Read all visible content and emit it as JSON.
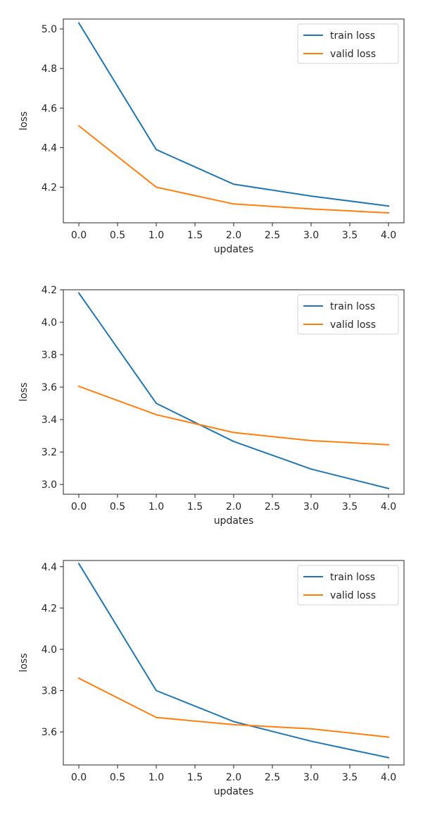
{
  "chart_data": [
    {
      "type": "line",
      "xlabel": "updates",
      "ylabel": "loss",
      "x": [
        0,
        1,
        2,
        3,
        4
      ],
      "xlim": [
        -0.2,
        4.2
      ],
      "ylim": [
        4.02,
        5.05
      ],
      "xticks": [
        0.0,
        0.5,
        1.0,
        1.5,
        2.0,
        2.5,
        3.0,
        3.5,
        4.0
      ],
      "xtick_labels": [
        "0.0",
        "0.5",
        "1.0",
        "1.5",
        "2.0",
        "2.5",
        "3.0",
        "3.5",
        "4.0"
      ],
      "yticks": [
        4.2,
        4.4,
        4.6,
        4.8,
        5.0
      ],
      "ytick_labels": [
        "4.2",
        "4.4",
        "4.6",
        "4.8",
        "5.0"
      ],
      "legend": "top-right",
      "grid": false,
      "series": [
        {
          "name": "train loss",
          "color": "#1f77b4",
          "values": [
            5.03,
            4.39,
            4.215,
            4.155,
            4.105
          ]
        },
        {
          "name": "valid loss",
          "color": "#ff7f0e",
          "values": [
            4.51,
            4.2,
            4.115,
            4.09,
            4.07
          ]
        }
      ]
    },
    {
      "type": "line",
      "xlabel": "updates",
      "ylabel": "loss",
      "x": [
        0,
        1,
        2,
        3,
        4
      ],
      "xlim": [
        -0.2,
        4.2
      ],
      "ylim": [
        2.94,
        4.2
      ],
      "xticks": [
        0.0,
        0.5,
        1.0,
        1.5,
        2.0,
        2.5,
        3.0,
        3.5,
        4.0
      ],
      "xtick_labels": [
        "0.0",
        "0.5",
        "1.0",
        "1.5",
        "2.0",
        "2.5",
        "3.0",
        "3.5",
        "4.0"
      ],
      "yticks": [
        3.0,
        3.2,
        3.4,
        3.6,
        3.8,
        4.0,
        4.2
      ],
      "ytick_labels": [
        "3.0",
        "3.2",
        "3.4",
        "3.6",
        "3.8",
        "4.0",
        "4.2"
      ],
      "legend": "top-right",
      "grid": false,
      "series": [
        {
          "name": "train loss",
          "color": "#1f77b4",
          "values": [
            4.18,
            3.5,
            3.265,
            3.095,
            2.975
          ]
        },
        {
          "name": "valid loss",
          "color": "#ff7f0e",
          "values": [
            3.605,
            3.43,
            3.32,
            3.27,
            3.245
          ]
        }
      ]
    },
    {
      "type": "line",
      "xlabel": "updates",
      "ylabel": "loss",
      "x": [
        0,
        1,
        2,
        3,
        4
      ],
      "xlim": [
        -0.2,
        4.2
      ],
      "ylim": [
        3.44,
        4.43
      ],
      "xticks": [
        0.0,
        0.5,
        1.0,
        1.5,
        2.0,
        2.5,
        3.0,
        3.5,
        4.0
      ],
      "xtick_labels": [
        "0.0",
        "0.5",
        "1.0",
        "1.5",
        "2.0",
        "2.5",
        "3.0",
        "3.5",
        "4.0"
      ],
      "yticks": [
        3.6,
        3.8,
        4.0,
        4.2,
        4.4
      ],
      "ytick_labels": [
        "3.6",
        "3.8",
        "4.0",
        "4.2",
        "4.4"
      ],
      "legend": "top-right",
      "grid": false,
      "series": [
        {
          "name": "train loss",
          "color": "#1f77b4",
          "values": [
            4.415,
            3.8,
            3.65,
            3.555,
            3.475
          ]
        },
        {
          "name": "valid loss",
          "color": "#ff7f0e",
          "values": [
            3.86,
            3.67,
            3.635,
            3.615,
            3.575
          ]
        }
      ]
    }
  ]
}
